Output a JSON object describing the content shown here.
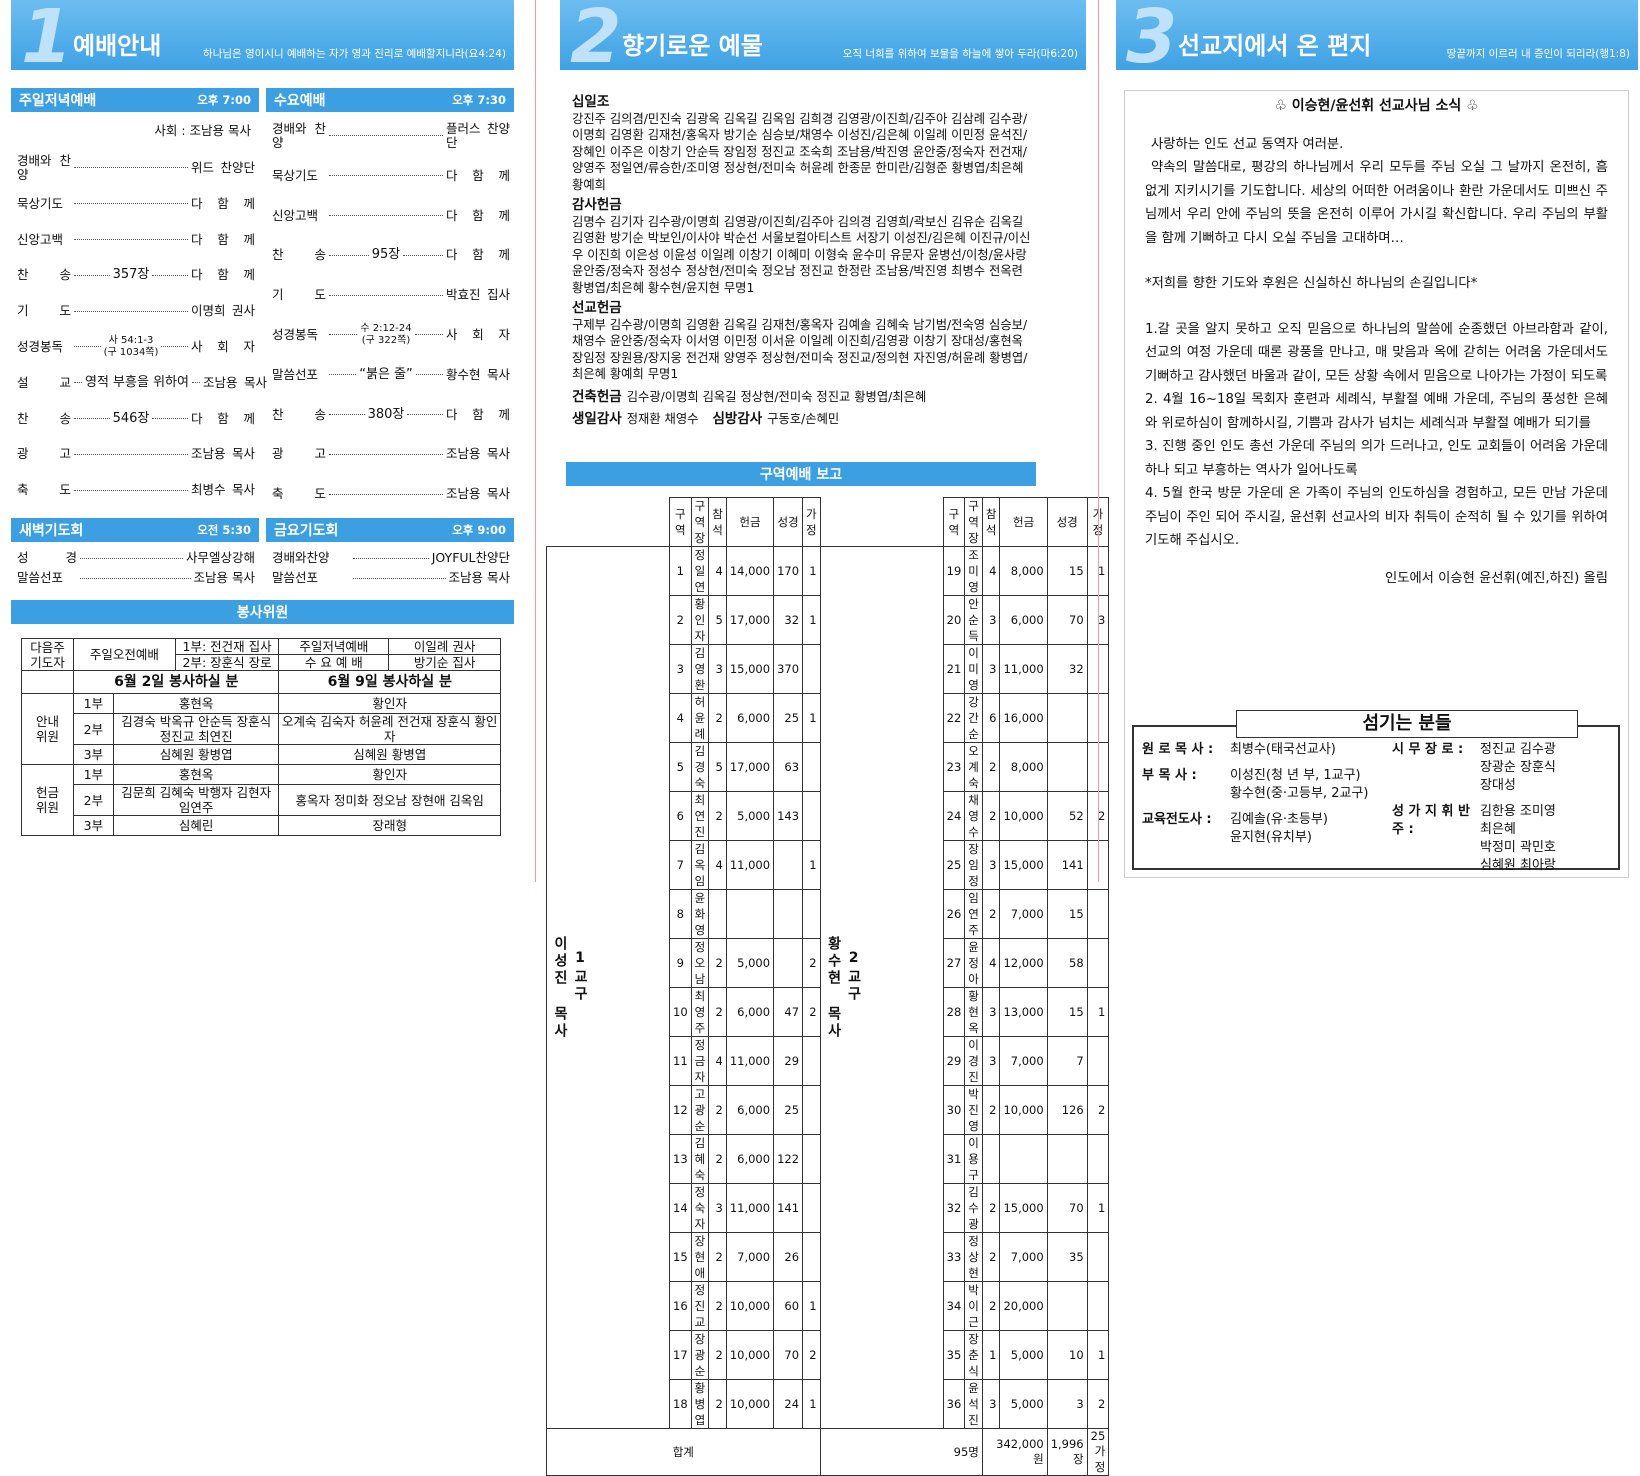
{
  "panel1": {
    "header": {
      "number": "1",
      "title": "예배안내",
      "verse": "하나님은 영이시니 예배하는 자가 영과 진리로 예배할지니라(요4:24)"
    },
    "sunday": {
      "title": "주일저녁예배",
      "time": "오후 7:00",
      "leader": "사회 : 조남용 목사",
      "items": [
        {
          "label": "경배와 찬양",
          "person": "위드 찬양단"
        },
        {
          "label": "묵상기도",
          "person": "다 함 께"
        },
        {
          "label": "신앙고백",
          "person": "다 함 께"
        },
        {
          "label": "찬 송",
          "detail": [
            "357장"
          ],
          "person": "다 함 께"
        },
        {
          "label": "기 도",
          "person": "이명희 권사"
        },
        {
          "label": "성경봉독",
          "detail": [
            "사 54:1-3",
            "(구 1034쪽)"
          ],
          "person": "사 회 자"
        },
        {
          "label": "설 교",
          "detail": [
            "영적 부흥을 위하여"
          ],
          "person": "조남용 목사"
        },
        {
          "label": "찬 송",
          "detail": [
            "546장"
          ],
          "person": "다 함 께"
        },
        {
          "label": "광 고",
          "person": "조남용 목사"
        },
        {
          "label": "축 도",
          "person": "최병수 목사"
        }
      ]
    },
    "wednesday": {
      "title": "수요예배",
      "time": "오후 7:30",
      "items": [
        {
          "label": "경배와 찬양",
          "person": "플러스 찬양단"
        },
        {
          "label": "묵상기도",
          "person": "다 함 께"
        },
        {
          "label": "신앙고백",
          "person": "다 함 께"
        },
        {
          "label": "찬 송",
          "detail": [
            "95장"
          ],
          "person": "다 함 께"
        },
        {
          "label": "기 도",
          "person": "박효진 집사"
        },
        {
          "label": "성경봉독",
          "detail": [
            "수 2:12-24",
            "(구 322쪽)"
          ],
          "person": "사 회 자"
        },
        {
          "label": "말씀선포",
          "detail": [
            "“붉은 줄”"
          ],
          "person": "황수현 목사"
        },
        {
          "label": "찬 송",
          "detail": [
            "380장"
          ],
          "person": "다 함 께"
        },
        {
          "label": "광 고",
          "person": "조남용 목사"
        },
        {
          "label": "축 도",
          "person": "조남용 목사"
        }
      ]
    },
    "dawn": {
      "title": "새벽기도회",
      "time": "오전 5:30",
      "items": [
        {
          "label": "성 경",
          "person": "사무엘상강해"
        },
        {
          "label": "말씀선포",
          "person": "조남용 목사"
        }
      ]
    },
    "friday": {
      "title": "금요기도회",
      "time": "오후 9:00",
      "items": [
        {
          "label": "경배와찬양",
          "person": "JOYFUL찬양단"
        },
        {
          "label": "말씀선포",
          "person": "조남용 목사"
        }
      ]
    },
    "service": {
      "title": "봉사위원",
      "prayer_label": "다음주 기도자",
      "morning_label": "주일오전예배",
      "morning_1": "1부: 전건재 집사",
      "morning_2": "2부: 장훈식 장로",
      "evening_label": "주일저녁예배",
      "evening": "이일례 권사",
      "wednesday_label": "수 요 예 배",
      "wednesday": "방기순 집사",
      "week1": "6월 2일 봉사하실 분",
      "week2": "6월 9일 봉사하실 분",
      "groups": [
        {
          "label": "안내 위원",
          "rows": [
            {
              "part": "1부",
              "week1": "홍현옥",
              "week2": "황인자"
            },
            {
              "part": "2부",
              "week1": "김경숙 박옥규 안순득 장훈식 정진교 최연진",
              "week2": "오계숙 김숙자 허윤례 전건재 장훈식 황인자"
            },
            {
              "part": "3부",
              "week1": "심혜원 황병엽",
              "week2": "심혜원 황병엽"
            }
          ]
        },
        {
          "label": "헌금 위원",
          "rows": [
            {
              "part": "1부",
              "week1": "홍현옥",
              "week2": "황인자"
            },
            {
              "part": "2부",
              "week1": "김문희 김혜숙 박행자 김현자 임연주",
              "week2": "홍옥자 정미화 정오남 장현애 김옥임"
            },
            {
              "part": "3부",
              "week1": "심혜린",
              "week2": "장래형"
            }
          ]
        }
      ]
    }
  },
  "panel2": {
    "header": {
      "number": "2",
      "title": "향기로운 예물",
      "verse": "오직 너희를 위하여 보물을 하늘에 쌓아 두라(마6:20)"
    },
    "offerings": [
      {
        "title": "십일조",
        "names": "강진주 김의겸/민진숙 김광옥 김옥길 김옥임 김희경 김영광/이진희/김주아 김삼례 김수광/이명희 김영환 김재천/홍옥자 방기순 심승보/채영수 이성진/김은혜 이일례 이민정 윤석진/장혜인 이주은 이창기 안순득 장임정 정진교 조숙희 조남용/박진영 윤안중/정숙자 전건재/양영주 정일연/류승한/조미영 정상현/전미숙 허윤례 한종문 한미란/김형준 황병엽/최은혜 황예희"
      },
      {
        "title": "감사헌금",
        "names": "김명수 김기자 김수광/이명희 김영광/이진희/김주아 김의경 김영희/곽보신 김유순 김옥길 김영환 방기순 박보인/이사야 박순선 서울보컬아티스트 서장기 이성진/김은혜 이진규/이신우 이진희 이은성 이윤성 이일례 이창기 이혜미 이형숙 윤수미 유문자 윤병선/이청/윤사랑 윤안중/정숙자 정성수 정상현/전미숙 정오남 정진교 한정란 조남용/박진영 최병수 전옥련 황병엽/최은혜 황수현/윤지현 무명1"
      },
      {
        "title": "선교헌금",
        "names": "구제부 김수광/이명희 김영환 김옥길 김재천/홍옥자 김예솔 김혜숙 남기범/전숙영 심승보/채영수 윤안중/정숙자 이서영 이민정 이서윤 이일례 이진희/김영광 이창기 장대성/홍현옥 장임정 장원용/장지웅 전건재 양영주 정상현/전미숙 정진교/정의현 자진영/허윤례 황병엽/최은혜 황예희 무명1"
      }
    ],
    "inline_offerings": [
      [
        {
          "title": "건축헌금",
          "names": "김수광/이명희 김옥길 정상현/전미숙 정진교 황병엽/최은혜"
        }
      ],
      [
        {
          "title": "생일감사",
          "names": "정재환 채영수"
        },
        {
          "title": "심방감사",
          "names": "구동호/손혜민"
        }
      ]
    ],
    "district": {
      "title": "구역예배 보고",
      "columns": [
        "구역",
        "구역장",
        "참석",
        "헌금",
        "성경",
        "가정"
      ],
      "groups": [
        {
          "label": "1교구",
          "pastor": "이성진 목사",
          "rows": [
            [
              1,
              "정일연",
              4,
              "14,000",
              170,
              1
            ],
            [
              2,
              "황인자",
              5,
              "17,000",
              32,
              1
            ],
            [
              3,
              "김영환",
              3,
              "15,000",
              370,
              null
            ],
            [
              4,
              "허윤례",
              2,
              "6,000",
              25,
              1
            ],
            [
              5,
              "김경숙",
              5,
              "17,000",
              63,
              null
            ],
            [
              6,
              "최연진",
              2,
              "5,000",
              143,
              null
            ],
            [
              7,
              "김옥임",
              4,
              "11,000",
              null,
              1
            ],
            [
              8,
              "윤화영",
              null,
              null,
              null,
              null
            ],
            [
              9,
              "정오남",
              2,
              "5,000",
              null,
              2
            ],
            [
              10,
              "최영주",
              2,
              "6,000",
              47,
              2
            ],
            [
              11,
              "정금자",
              4,
              "11,000",
              29,
              null
            ],
            [
              12,
              "고광순",
              2,
              "6,000",
              25,
              null
            ],
            [
              13,
              "김혜숙",
              2,
              "6,000",
              122,
              null
            ],
            [
              14,
              "정숙자",
              3,
              "11,000",
              141,
              null
            ],
            [
              15,
              "장현애",
              2,
              "7,000",
              26,
              null
            ],
            [
              16,
              "정진교",
              2,
              "10,000",
              60,
              1
            ],
            [
              17,
              "장광순",
              2,
              "10,000",
              70,
              2
            ],
            [
              18,
              "황병엽",
              2,
              "10,000",
              24,
              1
            ]
          ]
        },
        {
          "label": "2교구",
          "pastor": "황수현 목사",
          "rows": [
            [
              19,
              "조미영",
              4,
              "8,000",
              15,
              1
            ],
            [
              20,
              "안순득",
              3,
              "6,000",
              70,
              3
            ],
            [
              21,
              "이미영",
              3,
              "11,000",
              32,
              null
            ],
            [
              22,
              "강간순",
              6,
              "16,000",
              null,
              null
            ],
            [
              23,
              "오계숙",
              2,
              "8,000",
              null,
              null
            ],
            [
              24,
              "채영수",
              2,
              "10,000",
              52,
              2
            ],
            [
              25,
              "장임정",
              3,
              "15,000",
              141,
              null
            ],
            [
              26,
              "임연주",
              2,
              "7,000",
              15,
              null
            ],
            [
              27,
              "윤정아",
              4,
              "12,000",
              58,
              null
            ],
            [
              28,
              "황현옥",
              3,
              "13,000",
              15,
              1
            ],
            [
              29,
              "이경진",
              3,
              "7,000",
              7,
              null
            ],
            [
              30,
              "박진영",
              2,
              "10,000",
              126,
              2
            ],
            [
              31,
              "이용구",
              null,
              null,
              null,
              null
            ],
            [
              32,
              "김수광",
              2,
              "15,000",
              70,
              1
            ],
            [
              33,
              "정상현",
              2,
              "7,000",
              35,
              null
            ],
            [
              34,
              "박이근",
              2,
              "20,000",
              null,
              null
            ],
            [
              35,
              "장춘식",
              1,
              "5,000",
              10,
              1
            ],
            [
              36,
              "윤석진",
              3,
              "5,000",
              3,
              2
            ]
          ]
        }
      ],
      "total": {
        "label": "합계",
        "attendance": "95명",
        "offering": "342,000원",
        "bible": "1,996장",
        "family": "25가정"
      }
    }
  },
  "panel3": {
    "header": {
      "number": "3",
      "title": "선교지에서 온 편지",
      "verse": "땅끝까지 이르러 내 증인이 되리라(행1:8)"
    },
    "letter": {
      "heading": "♧ 이승현/윤선휘 선교사님 소식 ♧",
      "greeting": "사랑하는 인도 선교 동역자 여러분.",
      "intro": "약속의 말씀대로, 평강의 하나님께서 우리 모두를 주님 오실 그 날까지 온전히, 흠 없게 지키시기를 기도합니다. 세상의 어떠한 어려움이나 환란 가운데서도 미쁘신 주님께서 우리 안에 주님의 뜻을 온전히 이루어 가시길 확신합니다. 우리 주님의 부활을 함께 기뻐하고 다시 오실 주님을 고대하며…",
      "prayer_title": "*저희를 향한 기도와 후원은 신실하신 하나님의 손길입니다*",
      "prayers": [
        "1.갈 곳을 알지 못하고 오직 믿음으로 하나님의 말씀에 순종했던 아브라함과 같이, 선교의 여정 가운데 때론 광풍을 만나고, 매 맞음과 옥에 갇히는 어려움 가운데서도 기뻐하고 감사했던 바울과 같이, 모든 상황 속에서 믿음으로 나아가는 가정이 되도록",
        "2. 4월 16~18일 목회자 훈련과 세례식, 부활절 예배 가운데, 주님의 풍성한 은혜와 위로하심이 함께하시길, 기쁨과 감사가 넘치는 세례식과 부활절 예배가 되기를",
        "3. 진행 중인 인도 총선 가운데 주님의 의가 드러나고, 인도 교회들이 어려움 가운데 하나 되고 부흥하는 역사가 일어나도록",
        "4. 5월 한국 방문 가운데 온 가족이 주님의 인도하심을 경험하고, 모든 만남 가운데 주님이 주인 되어 주시길, 윤선휘 선교사의 비자 취득이 순적히 될 수 있기를 위하여 기도해 주십시오."
      ],
      "signature": "인도에서 이승현 윤선휘(예진,하진) 올림"
    },
    "staff": {
      "title": "섬기는 분들",
      "left": [
        {
          "role": "원 로 목 사 :",
          "names": [
            "최병수(태국선교사)"
          ]
        },
        {
          "role": "부 목 사 :",
          "names": [
            "이성진(청 년 부, 1교구)",
            "황수현(중·고등부, 2교구)"
          ]
        },
        {
          "role": "교육전도사 :",
          "names": [
            "김예솔(유·초등부)",
            "윤지현(유치부)"
          ]
        }
      ],
      "right": [
        {
          "role": "시 무 장 로 :",
          "names": [
            "정진교 김수광",
            "장광순 장훈식",
            "장대성"
          ]
        },
        {
          "role": "성 가 지 휘 반 주 :",
          "names": [
            "김한용 조미영",
            "최은혜",
            "박정미 곽민호",
            "심혜원 최아랑"
          ]
        }
      ]
    }
  }
}
